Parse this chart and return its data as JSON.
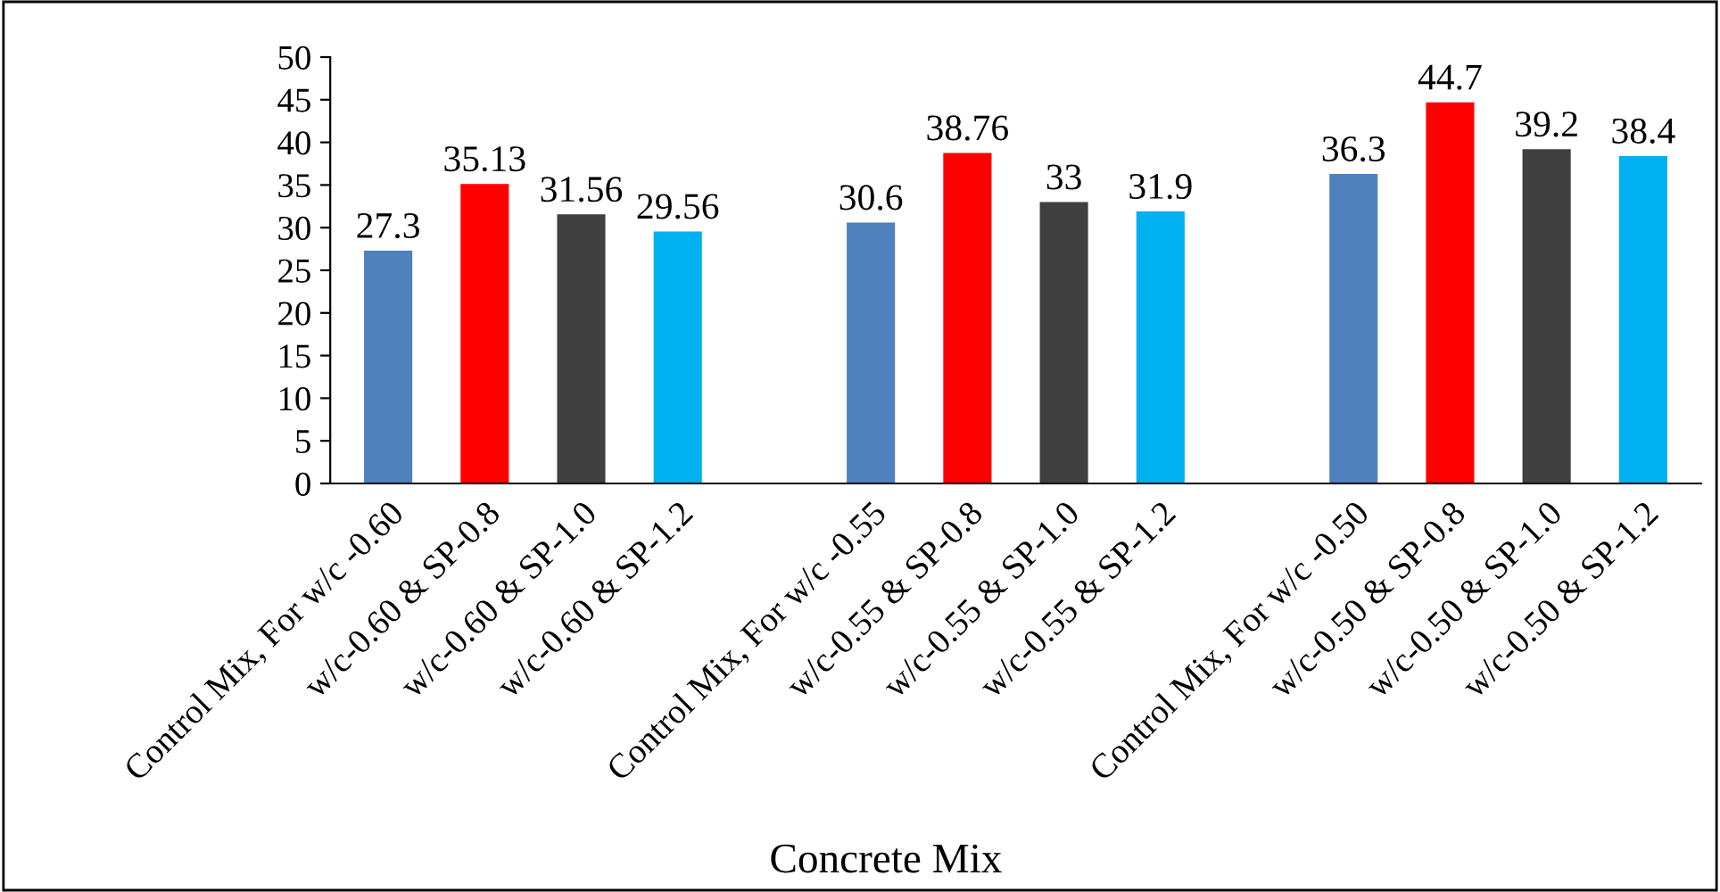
{
  "chart_data": {
    "type": "bar",
    "xlabel": "Concrete Mix",
    "categories": [
      "Control Mix, For w/c -0.60",
      "w/c-0.60 & SP-0.8",
      "w/c-0.60 & SP-1.0",
      "w/c-0.60 & SP-1.2",
      null,
      "Control Mix, For w/c -0.55",
      "w/c-0.55 & SP-0.8",
      "w/c-0.55 & SP-1.0",
      "w/c-0.55 & SP-1.2",
      null,
      "Control Mix, For w/c -0.50",
      "w/c-0.50 & SP-0.8",
      "w/c-0.50 & SP-1.0",
      "w/c-0.50 & SP-1.2"
    ],
    "values": [
      27.3,
      35.13,
      31.56,
      29.56,
      null,
      30.6,
      38.76,
      33,
      31.9,
      null,
      36.3,
      44.7,
      39.2,
      38.4
    ],
    "colors": [
      "#4f81bd",
      "#ff0000",
      "#404040",
      "#00b0f0",
      null,
      "#4f81bd",
      "#ff0000",
      "#404040",
      "#00b0f0",
      null,
      "#4f81bd",
      "#ff0000",
      "#404040",
      "#00b0f0"
    ],
    "ylim": [
      0,
      50
    ],
    "yticks": [
      0,
      5,
      10,
      15,
      20,
      25,
      30,
      35,
      40,
      45,
      50
    ],
    "data_labels": true,
    "grid": false
  }
}
